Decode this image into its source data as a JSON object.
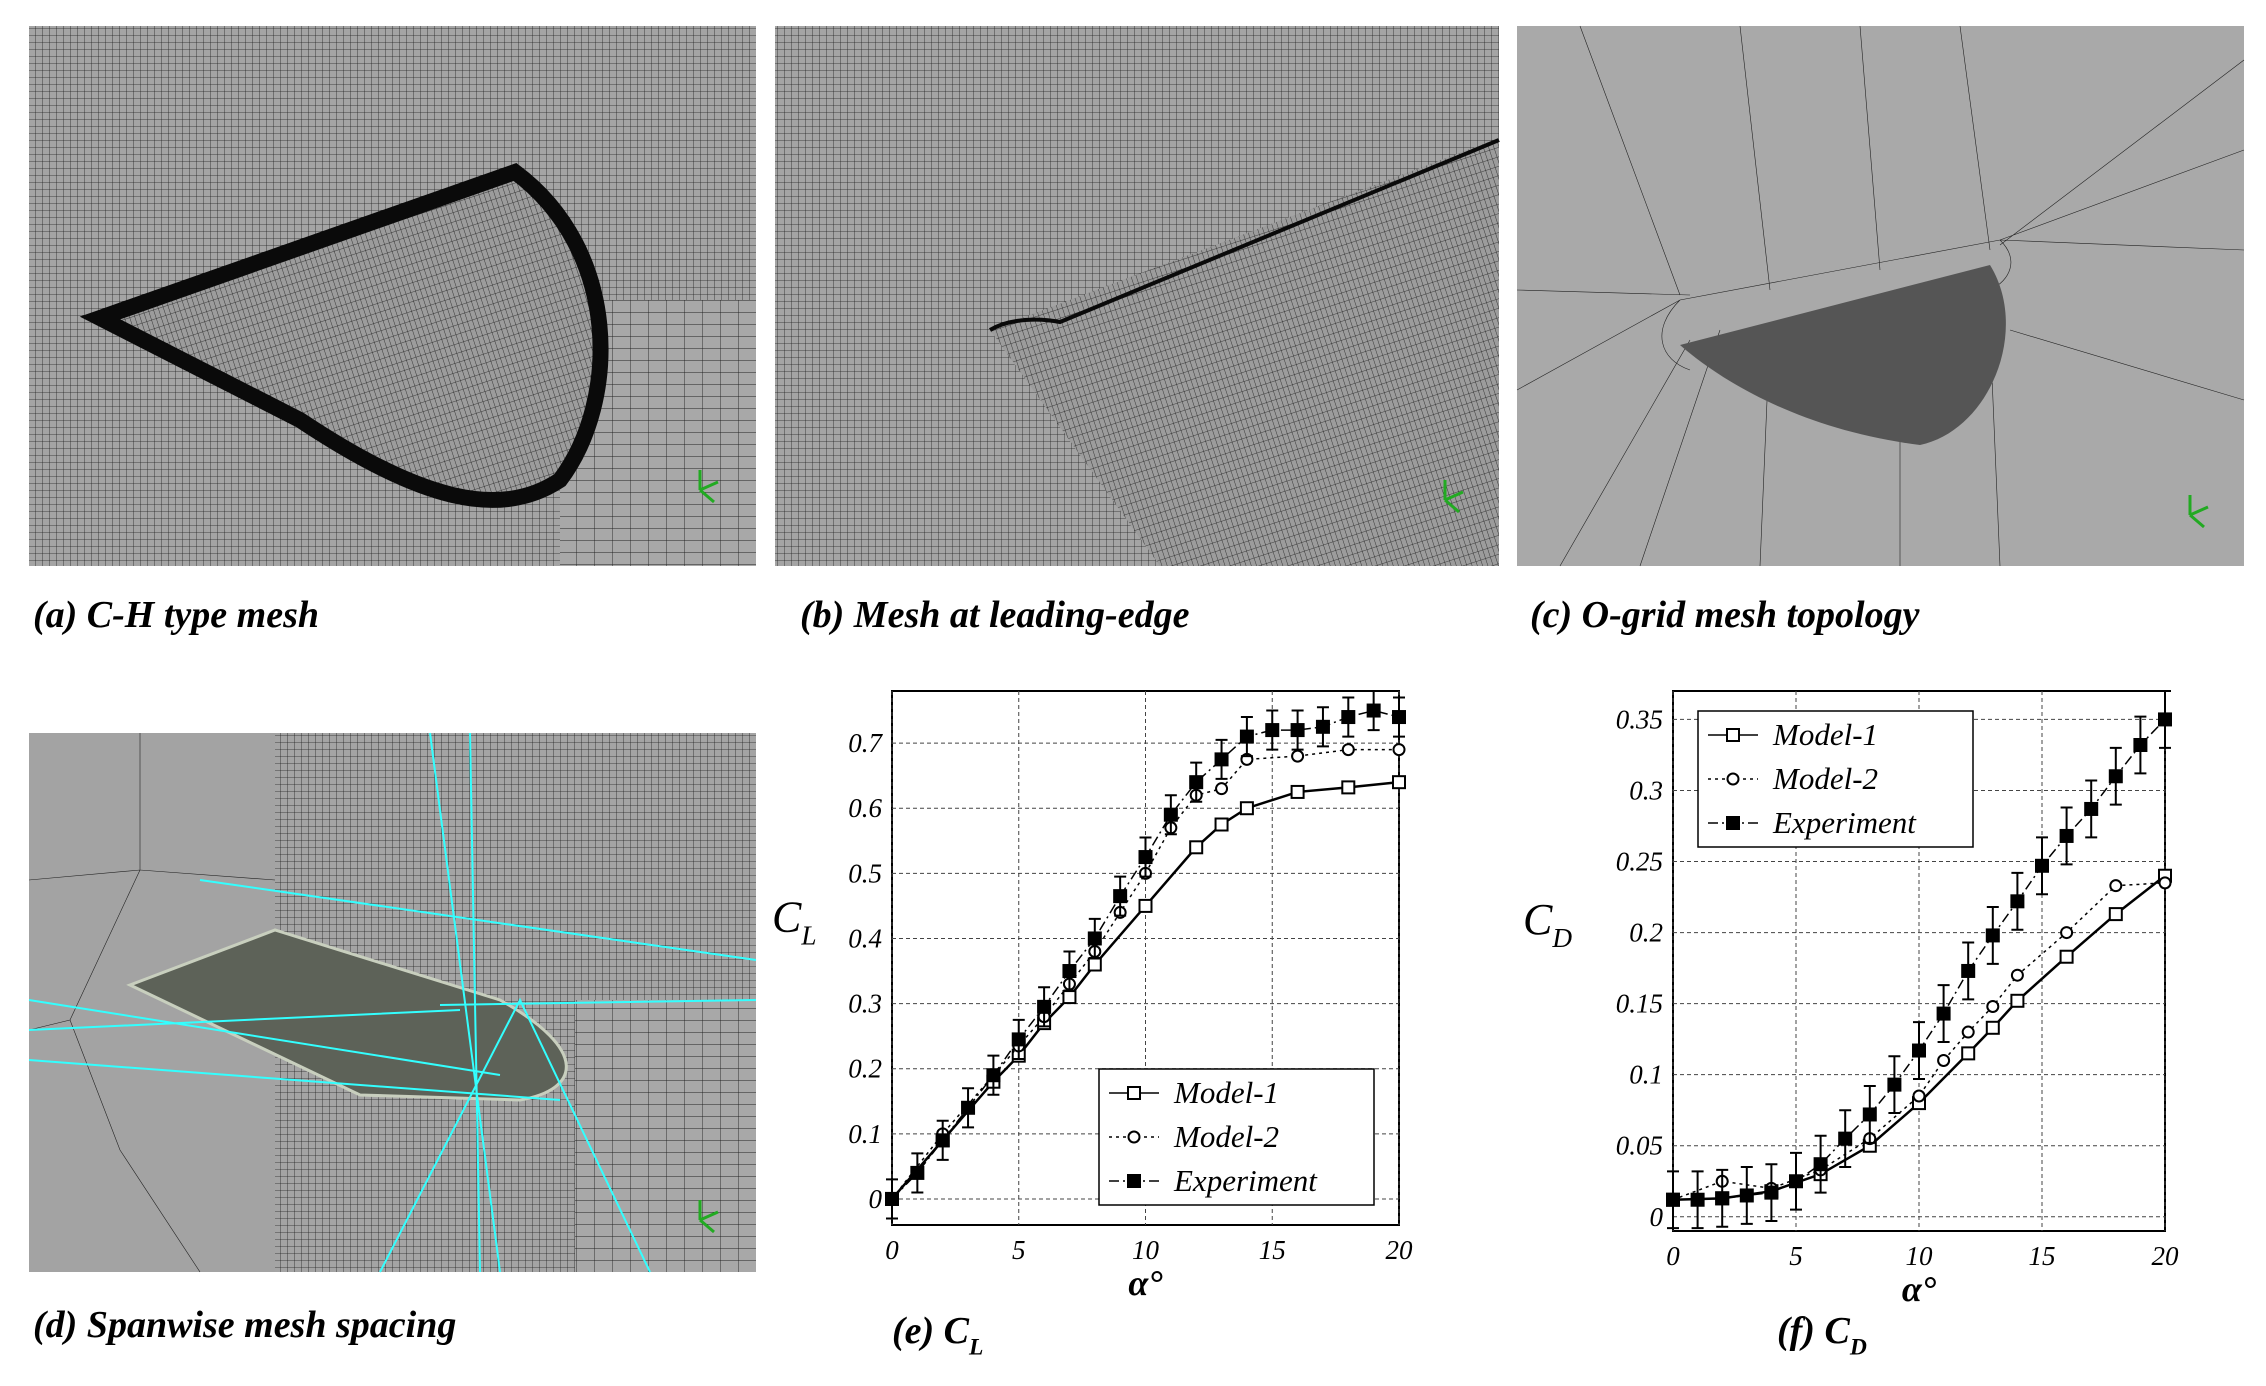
{
  "panels": [
    {
      "caption": "(a) C-H type mesh"
    },
    {
      "caption": "(b) Mesh at leading-edge"
    },
    {
      "caption": "(c) O-grid mesh topology"
    },
    {
      "caption": "(d) Spanwise mesh spacing"
    }
  ],
  "chart_data": [
    {
      "type": "line",
      "caption": "(e) C",
      "caption_sub": "L",
      "xlabel": "α°",
      "ylabel": "C",
      "ylabel_sub": "L",
      "xlim": [
        0,
        20
      ],
      "ylim": [
        -0.04,
        0.78
      ],
      "xticks": [
        0,
        5,
        10,
        15,
        20
      ],
      "yticks": [
        0,
        0.1,
        0.2,
        0.3,
        0.4,
        0.5,
        0.6,
        0.7
      ],
      "grid": true,
      "legend": "lower right",
      "series": [
        {
          "name": "Model-1",
          "color": "#000000",
          "marker": "square-open",
          "dash": "solid",
          "x": [
            0,
            2,
            4,
            5,
            6,
            7,
            8,
            10,
            12,
            13,
            14,
            16,
            18,
            20
          ],
          "values": [
            0,
            0.09,
            0.18,
            0.22,
            0.27,
            0.31,
            0.36,
            0.45,
            0.54,
            0.575,
            0.6,
            0.625,
            0.632,
            0.64
          ]
        },
        {
          "name": "Model-2",
          "color": "#000000",
          "marker": "circle-open",
          "dash": "dotted",
          "x": [
            0,
            2,
            4,
            5,
            6,
            7,
            8,
            9,
            10,
            11,
            12,
            13,
            14,
            16,
            18,
            20
          ],
          "values": [
            0,
            0.1,
            0.19,
            0.235,
            0.28,
            0.33,
            0.38,
            0.44,
            0.5,
            0.57,
            0.62,
            0.63,
            0.675,
            0.68,
            0.69,
            0.69
          ]
        },
        {
          "name": "Experiment",
          "color": "#000000",
          "marker": "square-filled",
          "dash": "dashdot",
          "x": [
            0,
            1,
            2,
            3,
            4,
            5,
            6,
            7,
            8,
            9,
            10,
            11,
            12,
            13,
            14,
            15,
            16,
            17,
            18,
            19,
            20
          ],
          "values": [
            0,
            0.04,
            0.09,
            0.14,
            0.19,
            0.245,
            0.295,
            0.35,
            0.4,
            0.465,
            0.525,
            0.59,
            0.64,
            0.675,
            0.71,
            0.72,
            0.72,
            0.725,
            0.74,
            0.75,
            0.74
          ],
          "errors": [
            0.03,
            0.03,
            0.03,
            0.03,
            0.03,
            0.03,
            0.03,
            0.03,
            0.03,
            0.03,
            0.03,
            0.03,
            0.03,
            0.03,
            0.03,
            0.03,
            0.03,
            0.03,
            0.03,
            0.03,
            0.03
          ]
        }
      ]
    },
    {
      "type": "line",
      "caption": "(f) C",
      "caption_sub": "D",
      "xlabel": "α°",
      "ylabel": "C",
      "ylabel_sub": "D",
      "xlim": [
        0,
        20
      ],
      "ylim": [
        -0.01,
        0.37
      ],
      "xticks": [
        0,
        5,
        10,
        15,
        20
      ],
      "yticks": [
        0,
        0.05,
        0.1,
        0.15,
        0.2,
        0.25,
        0.3,
        0.35
      ],
      "grid": true,
      "legend": "upper left",
      "series": [
        {
          "name": "Model-1",
          "color": "#000000",
          "marker": "square-open",
          "dash": "solid",
          "x": [
            0,
            2,
            4,
            6,
            8,
            10,
            12,
            13,
            14,
            16,
            18,
            20
          ],
          "values": [
            0.012,
            0.013,
            0.018,
            0.03,
            0.05,
            0.08,
            0.115,
            0.133,
            0.152,
            0.183,
            0.213,
            0.24
          ]
        },
        {
          "name": "Model-2",
          "color": "#000000",
          "marker": "circle-open",
          "dash": "dotted",
          "x": [
            0,
            2,
            4,
            6,
            8,
            10,
            11,
            12,
            13,
            14,
            16,
            18,
            20
          ],
          "values": [
            0.012,
            0.025,
            0.02,
            0.033,
            0.055,
            0.085,
            0.11,
            0.13,
            0.148,
            0.17,
            0.2,
            0.233,
            0.235
          ]
        },
        {
          "name": "Experiment",
          "color": "#000000",
          "marker": "square-filled",
          "dash": "dashdot",
          "x": [
            0,
            1,
            2,
            3,
            4,
            5,
            6,
            7,
            8,
            9,
            10,
            11,
            12,
            13,
            14,
            15,
            16,
            17,
            18,
            19,
            20
          ],
          "values": [
            0.012,
            0.012,
            0.013,
            0.015,
            0.017,
            0.025,
            0.037,
            0.055,
            0.072,
            0.093,
            0.117,
            0.143,
            0.173,
            0.198,
            0.222,
            0.247,
            0.268,
            0.287,
            0.31,
            0.332,
            0.35
          ],
          "errors": [
            0.02,
            0.02,
            0.02,
            0.02,
            0.02,
            0.02,
            0.02,
            0.02,
            0.02,
            0.02,
            0.02,
            0.02,
            0.02,
            0.02,
            0.02,
            0.02,
            0.02,
            0.02,
            0.02,
            0.02,
            0.02
          ]
        }
      ]
    }
  ]
}
